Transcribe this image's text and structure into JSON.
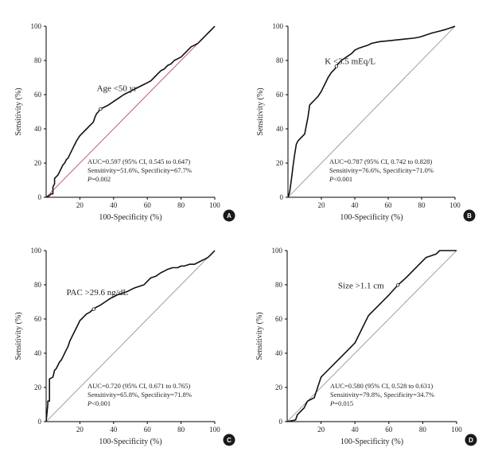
{
  "chart_data": [
    {
      "type": "line",
      "panel": "A",
      "title": "Age <50 yr",
      "xlabel": "100-Specificity (%)",
      "ylabel": "Sensitivity (%)",
      "xlim": [
        0,
        100
      ],
      "ylim": [
        0,
        100
      ],
      "ticks": [
        0,
        20,
        40,
        60,
        80,
        100
      ],
      "ref_line_color": "#b03060",
      "stats": [
        "AUC=0.597 (95% CI, 0.545 to 0.647)",
        "Sensitivity=51.6%, Specificity=67.7%",
        "=0.002"
      ],
      "p_label": "P",
      "marker": [
        32.3,
        51.6
      ],
      "series": [
        {
          "name": "ROC",
          "x": [
            0,
            2,
            3,
            4,
            4,
            5,
            5,
            6,
            7,
            8,
            9,
            10,
            11,
            12,
            13,
            14,
            16,
            18,
            20,
            22,
            24,
            26,
            28,
            29,
            30,
            31,
            32,
            33,
            35,
            37,
            40,
            43,
            46,
            50,
            54,
            58,
            62,
            64,
            66,
            68,
            70,
            72,
            74,
            76,
            78,
            80,
            82,
            84,
            86,
            88,
            90,
            92,
            94,
            96,
            97,
            98,
            99,
            100
          ],
          "y": [
            0,
            1,
            2,
            2,
            6,
            8,
            11,
            12,
            13,
            15,
            17,
            19,
            20,
            22,
            23,
            25,
            29,
            33,
            36,
            38,
            40,
            42,
            44,
            47,
            49,
            50,
            51.6,
            52,
            53,
            54,
            56,
            58,
            60,
            62,
            64,
            66,
            68,
            70,
            72,
            74,
            75,
            77,
            78,
            80,
            81,
            82,
            84,
            86,
            88,
            89,
            90,
            92,
            94,
            96,
            97,
            98,
            99,
            100
          ]
        }
      ]
    },
    {
      "type": "line",
      "panel": "B",
      "title": "K <3.5 mEq/L",
      "xlabel": "100-Specificity (%)",
      "ylabel": "Sensitivity (%)",
      "xlim": [
        0,
        100
      ],
      "ylim": [
        0,
        100
      ],
      "ticks": [
        0,
        20,
        40,
        60,
        80,
        100
      ],
      "ref_line_color": "#888888",
      "stats": [
        "AUC=0.787 (95% CI, 0.742 to 0.828)",
        "Sensitivity=76.6%, Specificity=71.0%",
        "<0.001"
      ],
      "p_label": "P",
      "marker": [
        29.0,
        76.6
      ],
      "series": [
        {
          "name": "ROC",
          "x": [
            0,
            1,
            2,
            3,
            4,
            5,
            6,
            8,
            10,
            11,
            12,
            13,
            14,
            16,
            18,
            20,
            22,
            24,
            26,
            28,
            29,
            30,
            32,
            35,
            38,
            40,
            42,
            45,
            48,
            50,
            55,
            60,
            65,
            70,
            75,
            78,
            80,
            83,
            86,
            90,
            94,
            97,
            100
          ],
          "y": [
            0,
            3,
            10,
            18,
            25,
            31,
            33,
            35,
            37,
            42,
            47,
            54,
            55,
            57,
            59,
            62,
            66,
            70,
            73,
            75,
            76.6,
            78,
            80,
            82,
            84,
            86,
            87,
            88,
            89,
            90,
            91,
            91.5,
            92,
            92.5,
            93,
            93.5,
            94,
            95,
            96,
            97,
            98,
            99,
            100
          ]
        }
      ]
    },
    {
      "type": "line",
      "panel": "C",
      "title": "PAC >29.6 ng/dL",
      "xlabel": "100-Specificity (%)",
      "ylabel": "Sensitivity (%)",
      "xlim": [
        0,
        100
      ],
      "ylim": [
        0,
        100
      ],
      "ticks": [
        0,
        20,
        40,
        60,
        80,
        100
      ],
      "ref_line_color": "#888888",
      "stats": [
        "AUC=0.720 (95% CI, 0.671 to 0.765)",
        "Sensitivity=65.8%, Specificity=71.8%",
        "<0.001"
      ],
      "p_label": "P",
      "marker": [
        28.2,
        65.8
      ],
      "series": [
        {
          "name": "ROC",
          "x": [
            0,
            1,
            1,
            2,
            2,
            4,
            5,
            6,
            7,
            8,
            9,
            10,
            11,
            12,
            13,
            14,
            15,
            16,
            17,
            18,
            19,
            20,
            21,
            22,
            24,
            26,
            28,
            30,
            32,
            35,
            38,
            40,
            42,
            45,
            48,
            50,
            52,
            55,
            58,
            60,
            62,
            65,
            68,
            70,
            72,
            75,
            78,
            80,
            82,
            85,
            88,
            90,
            92,
            94,
            96,
            98,
            100
          ],
          "y": [
            0,
            10,
            12,
            12,
            25,
            26,
            30,
            31,
            33,
            35,
            36,
            38,
            40,
            42,
            44,
            47,
            49,
            51,
            53,
            55,
            57,
            59,
            60,
            61,
            63,
            64,
            65.8,
            67,
            68,
            70,
            72,
            73,
            74,
            75,
            76,
            77,
            78,
            79,
            80,
            82,
            84,
            85,
            87,
            88,
            89,
            90,
            90,
            91,
            91,
            92,
            92,
            93,
            94,
            95,
            96,
            98,
            100
          ]
        }
      ]
    },
    {
      "type": "line",
      "panel": "D",
      "title": "Size >1.1 cm",
      "xlabel": "100-Specificity (%)",
      "ylabel": "Sensitivity (%)",
      "xlim": [
        0,
        100
      ],
      "ylim": [
        0,
        100
      ],
      "ticks": [
        0,
        20,
        40,
        60,
        80,
        100
      ],
      "ref_line_color": "#888888",
      "stats": [
        "AUC=0.580 (95% CI, 0.528 to 0.631)",
        "Sensitivity=79.8%, Specificity=34.7%",
        "=0.015"
      ],
      "p_label": "P",
      "marker": [
        65.3,
        79.8
      ],
      "series": [
        {
          "name": "ROC",
          "x": [
            0,
            5,
            6,
            8,
            10,
            11,
            12,
            14,
            16,
            18,
            20,
            24,
            28,
            32,
            36,
            40,
            44,
            48,
            52,
            56,
            60,
            65.3,
            70,
            74,
            78,
            82,
            85,
            88,
            90,
            95,
            100
          ],
          "y": [
            0,
            1,
            4,
            6,
            8,
            10,
            12,
            13,
            14,
            20,
            26,
            30,
            34,
            38,
            42,
            46,
            54,
            62,
            66,
            70,
            74,
            79.8,
            84,
            88,
            92,
            96,
            97,
            98,
            100,
            100,
            100
          ]
        }
      ]
    }
  ]
}
